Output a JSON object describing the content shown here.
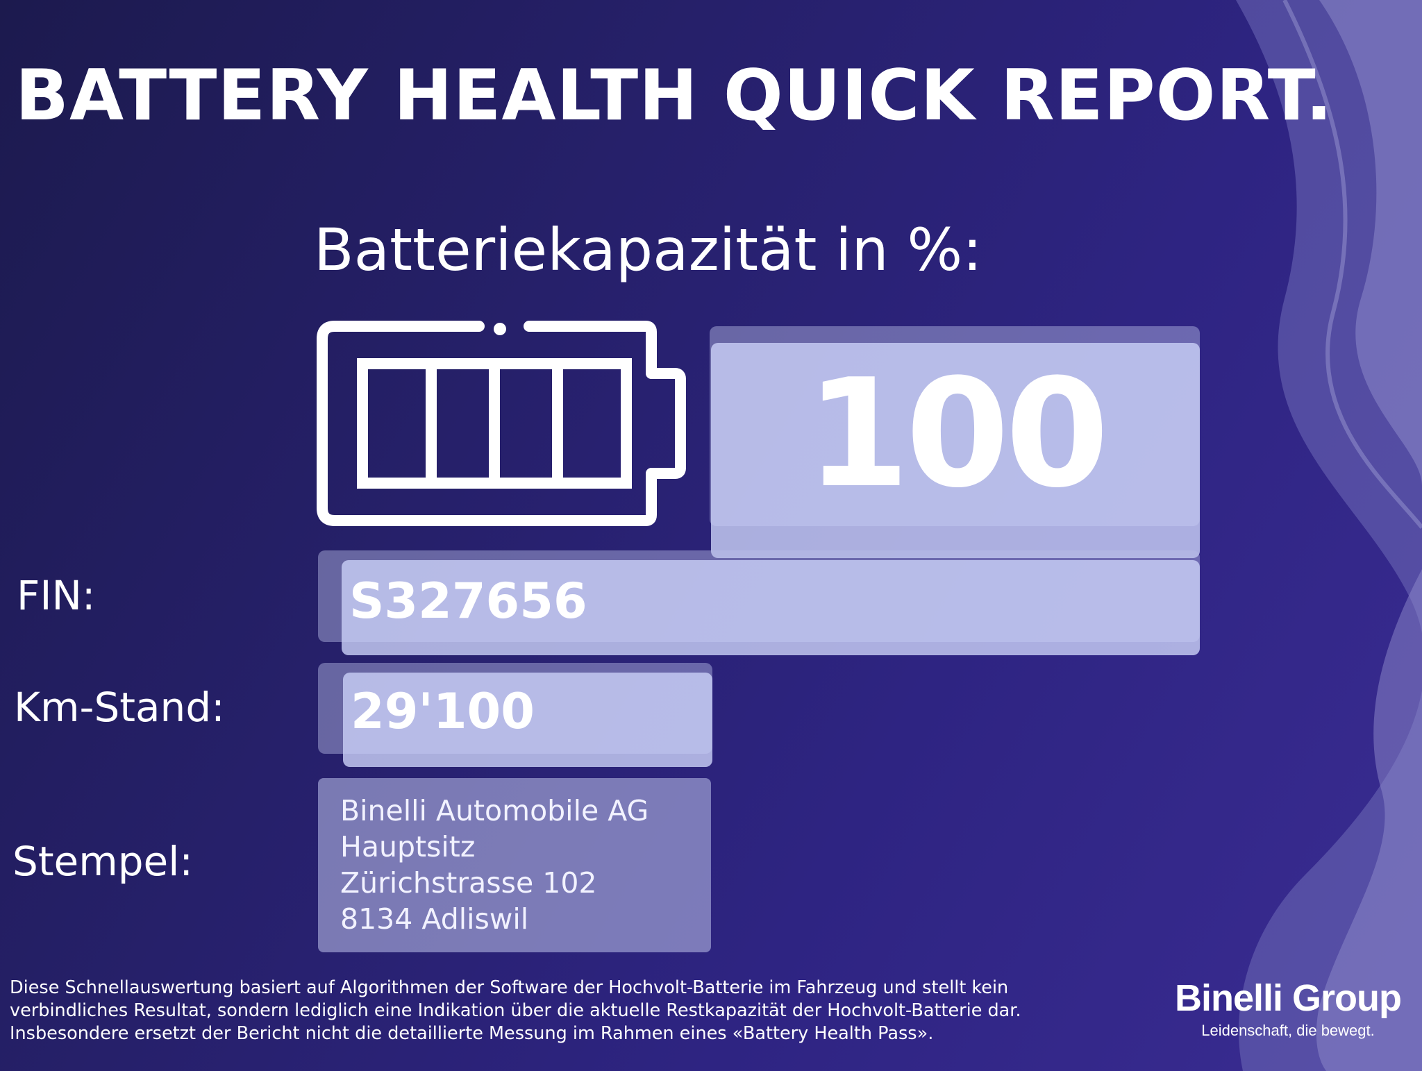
{
  "report": {
    "title": "BATTERY HEALTH QUICK REPORT.",
    "capacity_heading": "Batteriekapazität in %:",
    "capacity_value": "100",
    "battery_fill_fraction": 1.0
  },
  "fields": {
    "fin_label": "FIN:",
    "fin_value": "S327656",
    "km_label": "Km-Stand:",
    "km_value": "29'100",
    "stamp_label": "Stempel:",
    "stamp_lines": [
      "Binelli Automobile AG",
      "Hauptsitz",
      "Zürichstrasse 102",
      "8134 Adliswil"
    ]
  },
  "disclaimer": [
    "Diese Schnellauswertung basiert auf Algorithmen der Software der Hochvolt-Batterie im Fahrzeug und stellt kein",
    "verbindliches Resultat, sondern lediglich eine Indikation über die aktuelle Restkapazität der Hochvolt-Batterie dar.",
    "Insbesondere ersetzt der Bericht nicht die detaillierte Messung im Rahmen eines «Battery Health Pass»."
  ],
  "brand": {
    "name": "Binelli Group",
    "tagline": "Leidenschaft, die bewegt."
  },
  "icons": {
    "battery": "battery-full-icon"
  },
  "colors": {
    "background_dark": "#1c1a4e",
    "background_light": "#3a2c92",
    "value_box": "#c8cef5",
    "stamp_box": "#afb2de",
    "text": "#ffffff"
  }
}
